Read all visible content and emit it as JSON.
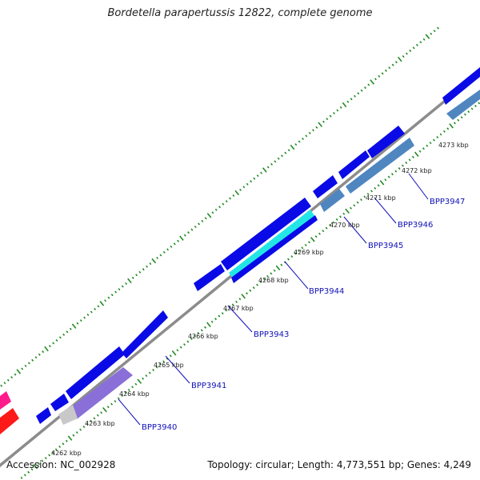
{
  "title": "Bordetella parapertussis 12822, complete genome",
  "footer": {
    "accession": "Accession: NC_002928",
    "summary": "Topology: circular; Length: 4,773,551 bp; Genes: 4,249"
  },
  "colors": {
    "backbone": "#8c8c8c",
    "tick_dots": "#228b22",
    "gene_blue": "#0a0ae6",
    "gene_steel": "#4f86c0",
    "gene_lavender": "#8a6fd8",
    "gene_cyan": "#22e6e6",
    "gene_gray": "#c8c8c8",
    "gene_red": "#ff1a1a",
    "gene_pink": "#ff1a8c",
    "label_text": "#1010b8"
  },
  "scale_ticks": [
    "4262 kbp",
    "4263 kbp",
    "4264 kbp",
    "4265 kbp",
    "4266 kbp",
    "4267 kbp",
    "4268 kbp",
    "4269 kbp",
    "4270 kbp",
    "4271 kbp",
    "4272 kbp",
    "4273 kbp"
  ],
  "gene_labels": [
    "BPP3940",
    "BPP3941",
    "BPP3943",
    "BPP3944",
    "BPP3945",
    "BPP3946",
    "BPP3947"
  ]
}
